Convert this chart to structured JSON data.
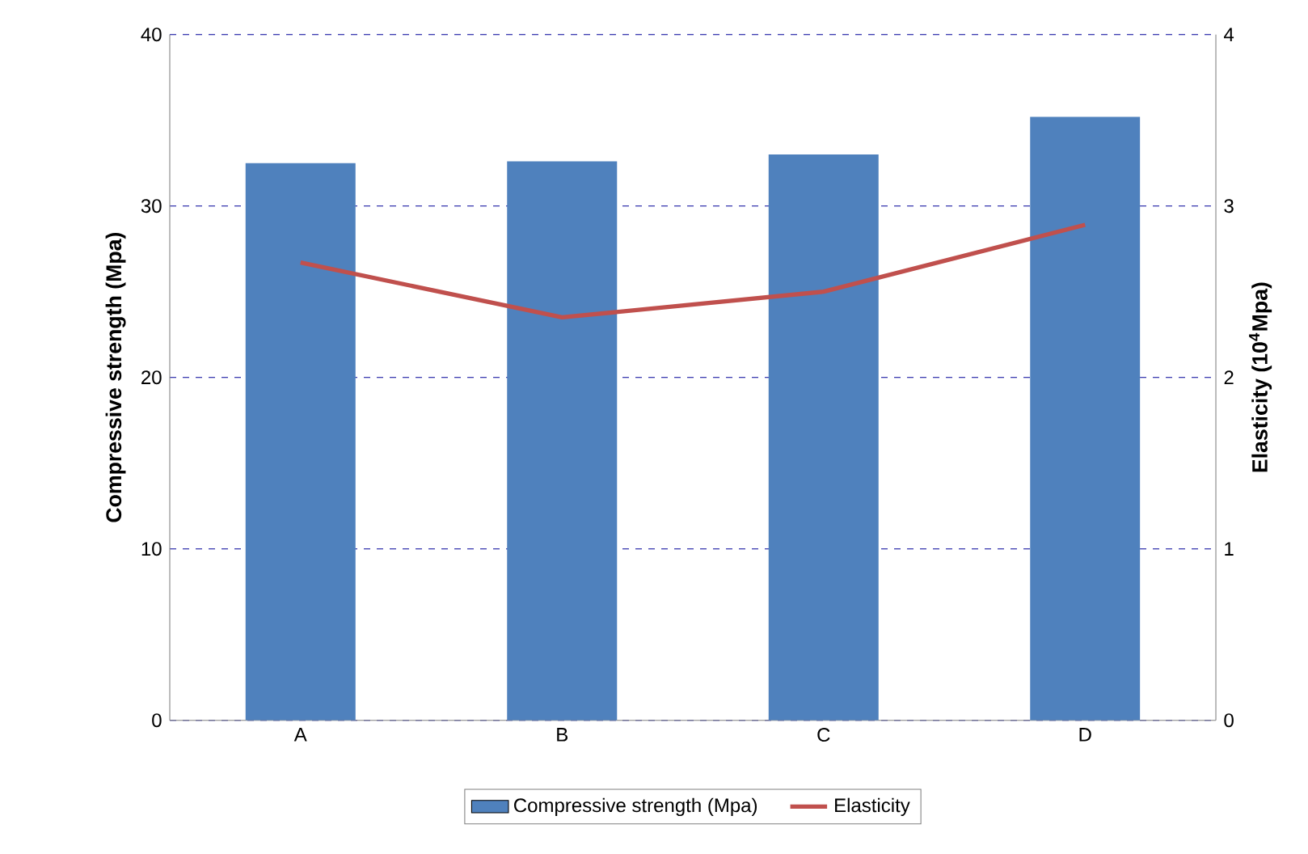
{
  "chart_data": {
    "type": "bar",
    "categories": [
      "A",
      "B",
      "C",
      "D"
    ],
    "series": [
      {
        "name": "Compressive strength (Mpa)",
        "color": "#4f81bd",
        "values": [
          32.5,
          32.6,
          33.0,
          35.2
        ]
      },
      {
        "name": "Elasticity",
        "type": "line",
        "axis": "y2",
        "color": "#c0504d",
        "values": [
          2.67,
          2.35,
          2.5,
          2.89
        ]
      }
    ],
    "ylabel": "Compressive strength (Mpa)",
    "y2label": "Elasticity (10$^{4}$Mpa)",
    "ylim": [
      0,
      40
    ],
    "yticks": [
      0,
      10,
      20,
      30,
      40
    ],
    "y2lim": [
      0,
      4
    ],
    "y2ticks": [
      0,
      1,
      2,
      3,
      4
    ],
    "grid": "y",
    "legend": "bottom"
  }
}
